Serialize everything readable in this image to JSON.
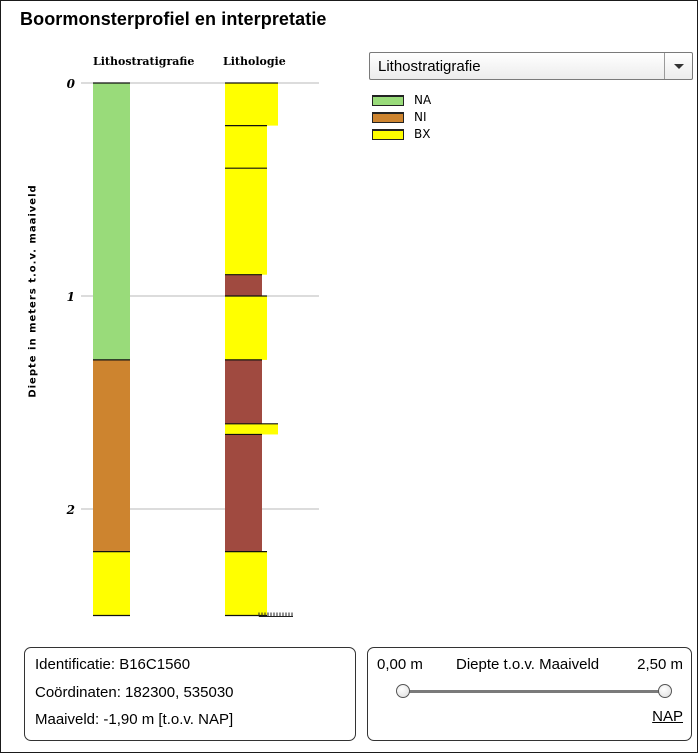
{
  "title": "Boormonsterprofiel en interpretatie",
  "columns": {
    "lithostratigrafie": "Lithostratigrafie",
    "lithologie": "Lithologie"
  },
  "y_axis_label": "Diepte in meters t.o.v. maaiveld",
  "dropdown": {
    "selected": "Lithostratigrafie"
  },
  "legend": [
    {
      "code": "NA",
      "color": "#99db7a"
    },
    {
      "code": "NI",
      "color": "#cd842f"
    },
    {
      "code": "BX",
      "color": "#ffff00"
    }
  ],
  "info": {
    "identificatie": "Identificatie: B16C1560",
    "coordinaten": "Coördinaten: 182300, 535030",
    "maaiveld": "Maaiveld: -1,90 m [t.o.v. NAP]"
  },
  "depth_control": {
    "start": "0,00 m",
    "label": "Diepte t.o.v. Maaiveld",
    "end": "2,50 m",
    "range_start_fraction": 0,
    "range_end_fraction": 1,
    "nap_link": "NAP"
  },
  "chart_data": {
    "type": "table",
    "y_ticks": [
      "0",
      "1",
      "2"
    ],
    "y_range": [
      0,
      2.5
    ],
    "lithostratigrafie": [
      {
        "top": 0.0,
        "bottom": 1.3,
        "unit": "NA",
        "color": "#99db7a"
      },
      {
        "top": 1.3,
        "bottom": 2.2,
        "unit": "NI",
        "color": "#cd842f"
      },
      {
        "top": 2.2,
        "bottom": 2.5,
        "unit": "BX",
        "color": "#ffff00"
      }
    ],
    "lithologie": [
      {
        "top": 0.0,
        "bottom": 0.2,
        "color": "#ffff00",
        "width": "wide"
      },
      {
        "top": 0.2,
        "bottom": 0.4,
        "color": "#ffff00",
        "width": "medium"
      },
      {
        "top": 0.4,
        "bottom": 0.9,
        "color": "#ffff00",
        "width": "medium"
      },
      {
        "top": 0.9,
        "bottom": 1.0,
        "color": "#a04a40",
        "width": "narrow"
      },
      {
        "top": 1.0,
        "bottom": 1.3,
        "color": "#ffff00",
        "width": "medium"
      },
      {
        "top": 1.3,
        "bottom": 1.6,
        "color": "#a04a40",
        "width": "narrow"
      },
      {
        "top": 1.6,
        "bottom": 1.65,
        "color": "#ffff00",
        "width": "wide"
      },
      {
        "top": 1.65,
        "bottom": 2.2,
        "color": "#a04a40",
        "width": "narrow"
      },
      {
        "top": 2.2,
        "bottom": 2.5,
        "color": "#ffff00",
        "width": "medium"
      }
    ]
  }
}
